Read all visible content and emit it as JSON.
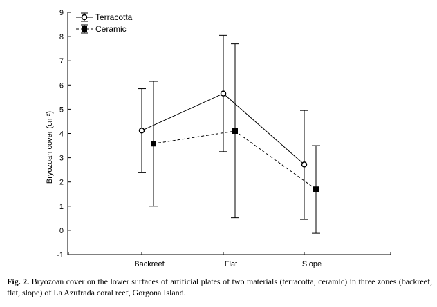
{
  "chart_data": {
    "type": "line",
    "categories": [
      "Backreef",
      "Flat",
      "Slope"
    ],
    "ylabel": "Bryozoan cover (cm²)",
    "xlabel": "",
    "ylim": [
      -1,
      9
    ],
    "yticks": [
      -1,
      0,
      1,
      2,
      3,
      4,
      5,
      6,
      7,
      8,
      9
    ],
    "grid": false,
    "legend_position": "top-left",
    "series": [
      {
        "name": "Terracotta",
        "marker": "open-circle",
        "line": "solid",
        "values": [
          4.12,
          5.65,
          2.72
        ],
        "upper": [
          5.85,
          8.05,
          4.95
        ],
        "lower": [
          2.38,
          3.25,
          0.45
        ]
      },
      {
        "name": "Ceramic",
        "marker": "filled-square",
        "line": "dashed",
        "values": [
          3.58,
          4.1,
          1.7
        ],
        "upper": [
          6.15,
          7.7,
          3.5
        ],
        "lower": [
          1.0,
          0.52,
          -0.12
        ]
      }
    ]
  },
  "caption": {
    "label": "Fig. 2.",
    "text": " Bryozoan cover on the lower surfaces of artificial plates of two materials (terracotta, ceramic) in three zones (backreef, flat, slope) of La Azufrada coral reef, Gorgona Island."
  }
}
